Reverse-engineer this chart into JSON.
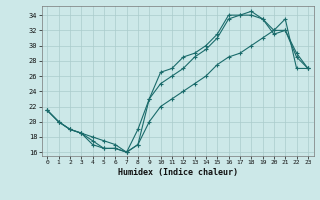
{
  "xlabel": "Humidex (Indice chaleur)",
  "ylabel": "",
  "xlim": [
    -0.5,
    23.5
  ],
  "ylim": [
    15.5,
    35.2
  ],
  "xticks": [
    0,
    1,
    2,
    3,
    4,
    5,
    6,
    7,
    8,
    9,
    10,
    11,
    12,
    13,
    14,
    15,
    16,
    17,
    18,
    19,
    20,
    21,
    22,
    23
  ],
  "yticks": [
    16,
    18,
    20,
    22,
    24,
    26,
    28,
    30,
    32,
    34
  ],
  "background_color": "#cce8e8",
  "grid_color": "#aacccc",
  "line_color": "#1a6b6b",
  "line1_x": [
    0,
    1,
    2,
    3,
    4,
    5,
    6,
    7,
    8,
    9,
    10,
    11,
    12,
    13,
    14,
    15,
    16,
    17,
    18,
    19,
    20,
    21,
    22,
    23
  ],
  "line1_y": [
    21.5,
    20,
    19,
    18.5,
    17.5,
    16.5,
    16.5,
    16,
    17,
    23,
    26.5,
    27,
    28.5,
    29,
    30,
    31.5,
    34,
    34,
    34.5,
    33.5,
    32,
    32,
    29,
    27
  ],
  "line2_x": [
    0,
    1,
    2,
    3,
    4,
    5,
    6,
    7,
    8,
    9,
    10,
    11,
    12,
    13,
    14,
    15,
    16,
    17,
    18,
    19,
    20,
    21,
    22,
    23
  ],
  "line2_y": [
    21.5,
    20,
    19,
    18.5,
    18,
    17.5,
    17,
    16,
    19,
    23,
    25,
    26,
    27,
    28.5,
    29.5,
    31,
    33.5,
    34,
    34,
    33.5,
    31.5,
    32,
    28.5,
    27
  ],
  "line3_x": [
    0,
    1,
    2,
    3,
    4,
    5,
    6,
    7,
    8,
    9,
    10,
    11,
    12,
    13,
    14,
    15,
    16,
    17,
    18,
    19,
    20,
    21,
    22,
    23
  ],
  "line3_y": [
    21.5,
    20,
    19,
    18.5,
    17,
    16.5,
    16.5,
    16,
    17,
    20,
    22,
    23,
    24,
    25,
    26,
    27.5,
    28.5,
    29,
    30,
    31,
    32,
    33.5,
    27,
    27
  ]
}
